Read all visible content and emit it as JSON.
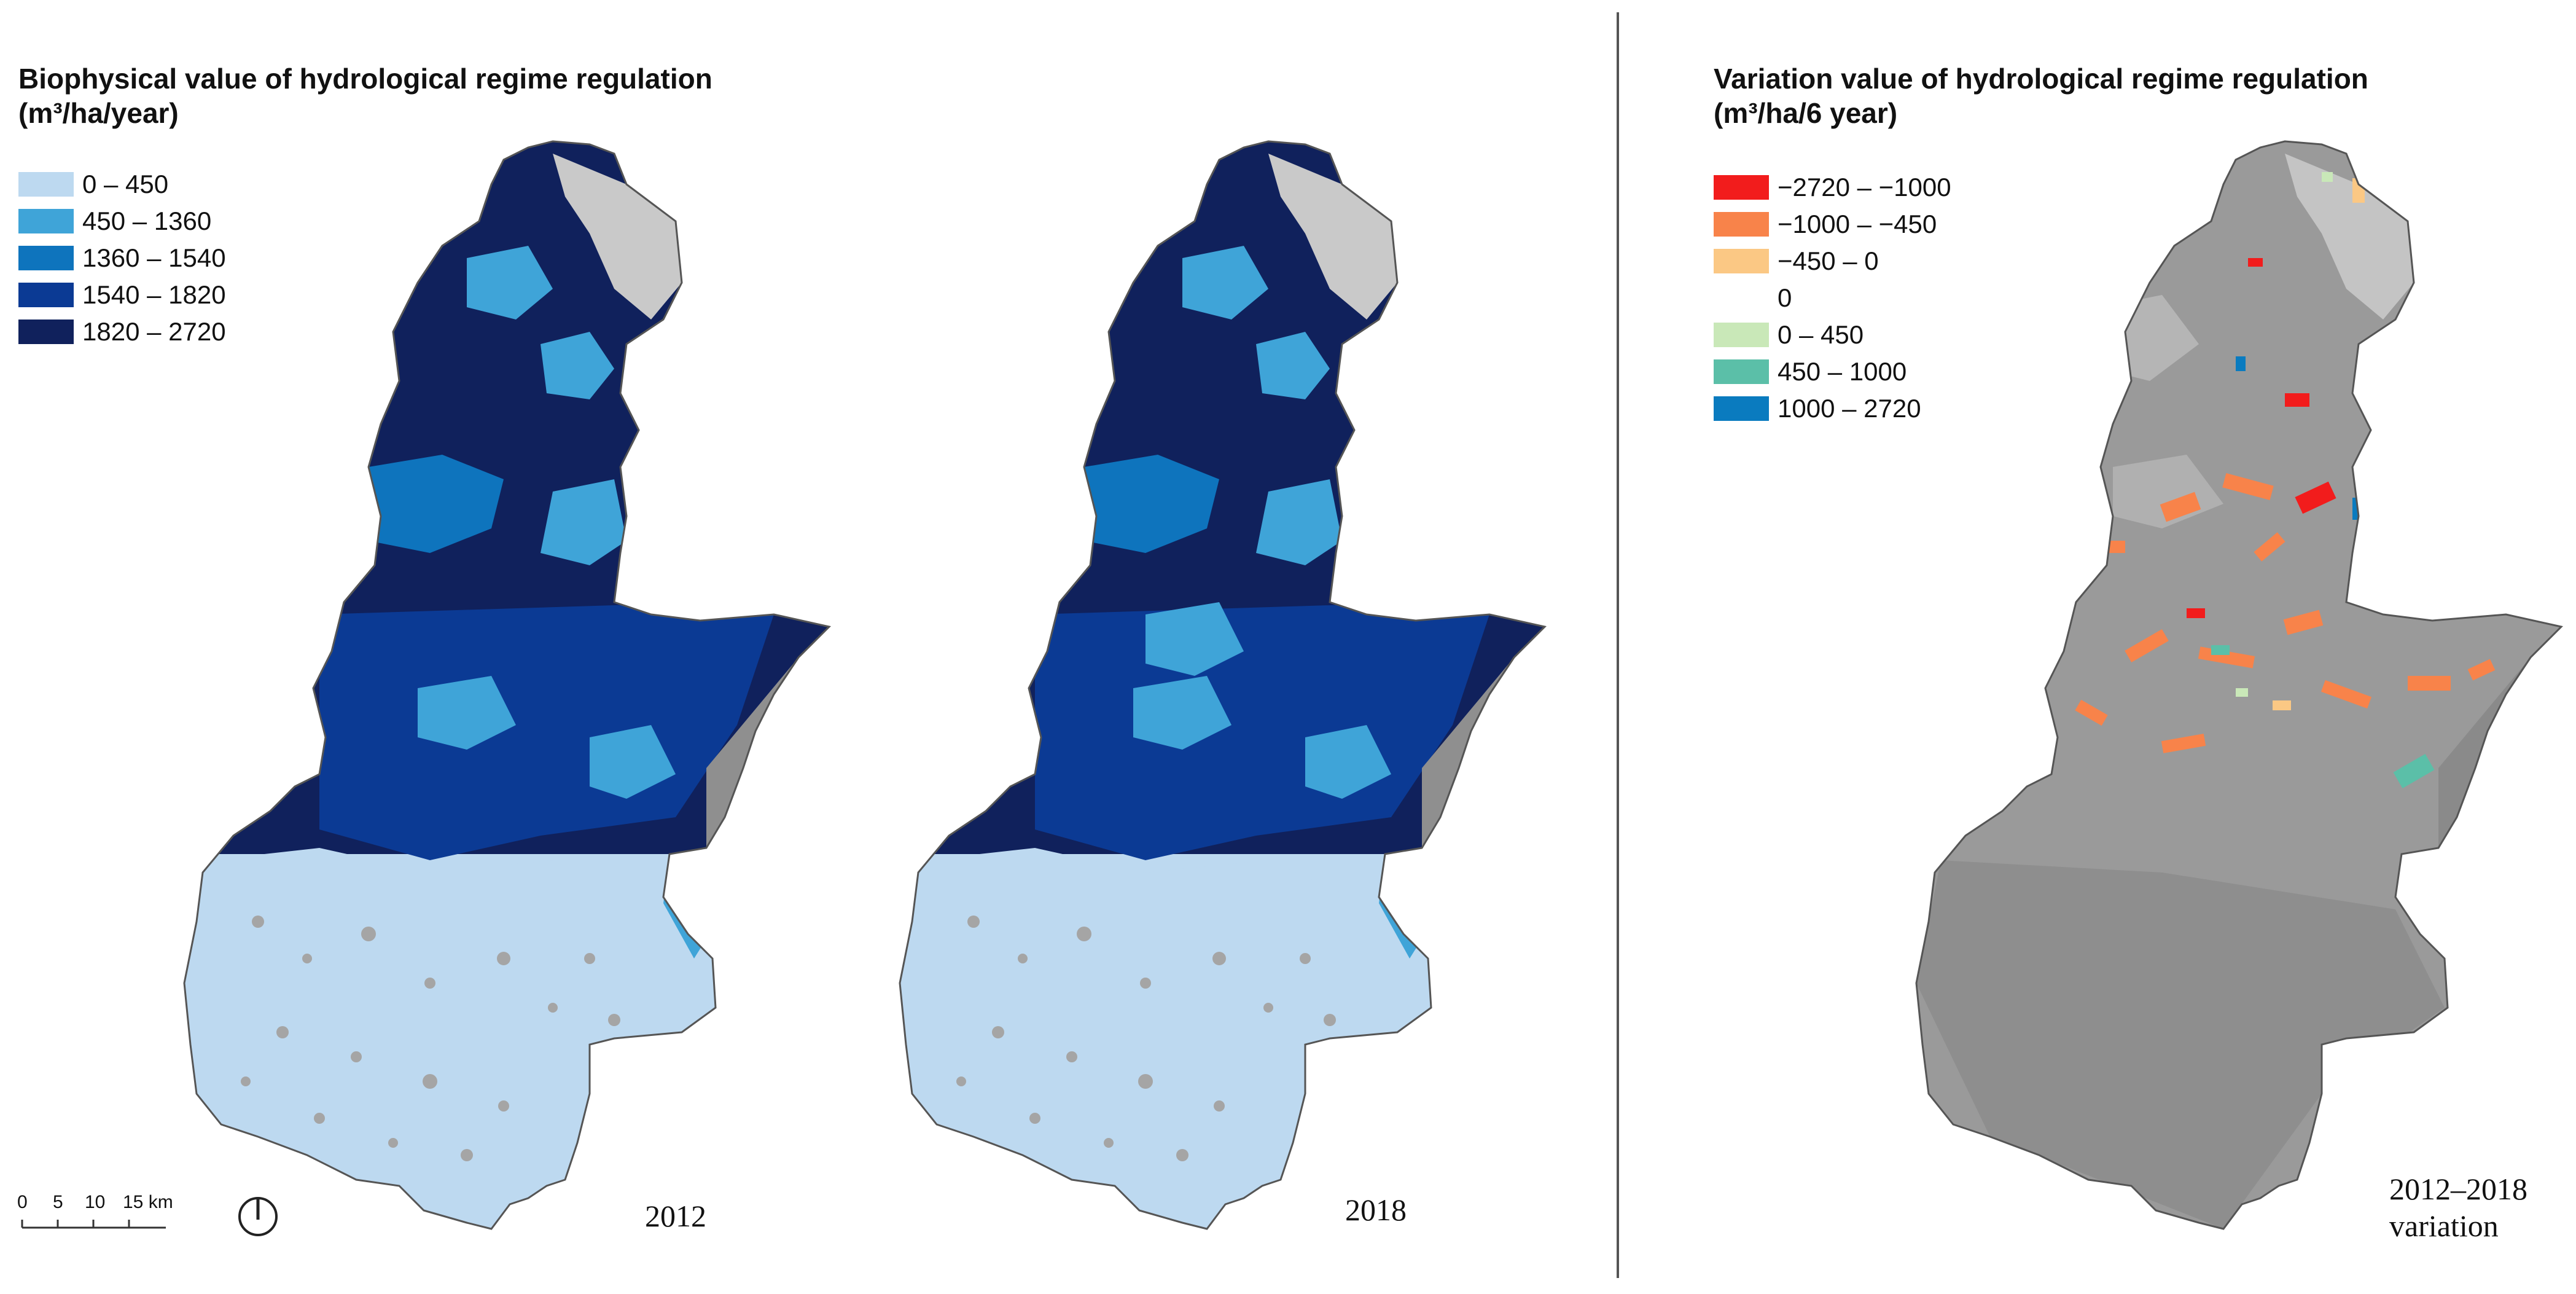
{
  "left_panel": {
    "title_line1": "Biophysical value of hydrological regime regulation",
    "title_line2": "(m³/ha/year)",
    "legend": [
      {
        "label": "0 – 450",
        "color": "#bdd9f0"
      },
      {
        "label": "450 – 1360",
        "color": "#3fa4d8"
      },
      {
        "label": "1360 – 1540",
        "color": "#0e74bd"
      },
      {
        "label": "1540 – 1820",
        "color": "#0b3a94"
      },
      {
        "label": "1820 – 2720",
        "color": "#10215c"
      }
    ],
    "map_2012_label": "2012",
    "map_2018_label": "2018"
  },
  "right_panel": {
    "title_line1": "Variation value of hydrological regime regulation",
    "title_line2": "(m³/ha/6 year)",
    "legend": [
      {
        "label": "−2720 – −1000",
        "color": "#f21c1c"
      },
      {
        "label": "−1000 – −450",
        "color": "#f8834a"
      },
      {
        "label": "−450 – 0",
        "color": "#fbc884"
      },
      {
        "label": "0",
        "color": ""
      },
      {
        "label": "0 – 450",
        "color": "#c9e8b8"
      },
      {
        "label": "450 – 1000",
        "color": "#5bbfa8"
      },
      {
        "label": "1000 – 2720",
        "color": "#0a7bbf"
      }
    ],
    "variation_label_line1": "2012–2018",
    "variation_label_line2": "variation"
  },
  "scale_bar": {
    "ticks": [
      "0",
      "5",
      "10",
      "15 km"
    ]
  },
  "colors": {
    "mountain_gray": "#8f8f8f",
    "lake_gray": "#a5a5a5",
    "plain_gray": "#9a9a9a"
  }
}
